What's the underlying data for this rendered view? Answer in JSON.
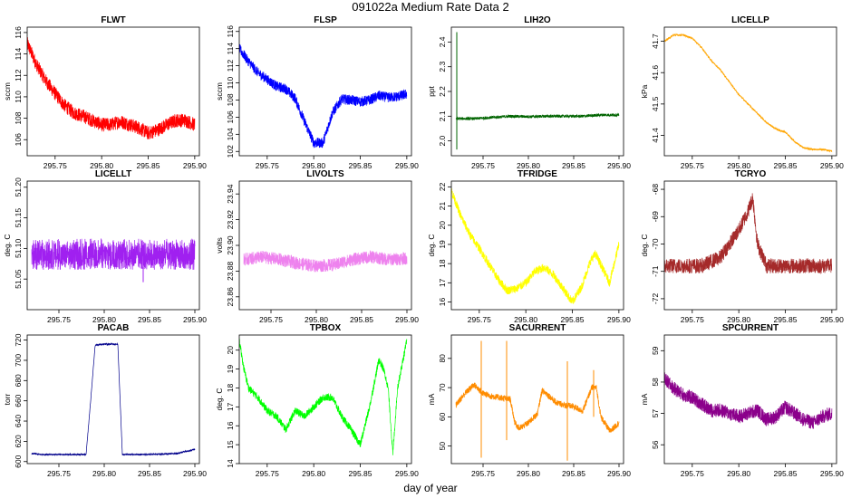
{
  "figure": {
    "title": "091022a   Medium Rate Data 2",
    "xlabel": "day of year"
  },
  "chart_data": [
    {
      "type": "line",
      "title": "FLWT",
      "ylabel": "sccm",
      "color": "#ff0000",
      "xlim": [
        295.72,
        295.905
      ],
      "ylim": [
        104.5,
        116.5
      ],
      "xticks": [
        295.75,
        295.8,
        295.85,
        295.9
      ],
      "xticklabels": [
        "295.75",
        "295.80",
        "295.85",
        "295.90"
      ],
      "yticks": [
        106,
        108,
        110,
        112,
        114,
        116
      ],
      "yticklabels": [
        "106",
        "108",
        "110",
        "112",
        "114",
        "116"
      ],
      "x": [
        295.72,
        295.73,
        295.74,
        295.75,
        295.76,
        295.77,
        295.78,
        295.79,
        295.8,
        295.81,
        295.82,
        295.83,
        295.84,
        295.85,
        295.86,
        295.87,
        295.88,
        295.89,
        295.9
      ],
      "y": [
        115,
        113,
        111.5,
        110.3,
        109.2,
        108.5,
        108.2,
        107.8,
        107.4,
        107.4,
        107.7,
        107.4,
        107.1,
        106.6,
        106.9,
        107.4,
        107.8,
        107.8,
        107.4
      ],
      "noise": 1.3
    },
    {
      "type": "line",
      "title": "FLSP",
      "ylabel": "sccm",
      "color": "#0000ff",
      "xlim": [
        295.72,
        295.905
      ],
      "ylim": [
        101.5,
        116.5
      ],
      "xticks": [
        295.75,
        295.8,
        295.85,
        295.9
      ],
      "xticklabels": [
        "295.75",
        "295.80",
        "295.85",
        "295.90"
      ],
      "yticks": [
        102,
        104,
        106,
        108,
        110,
        112,
        114,
        116
      ],
      "yticklabels": [
        "102",
        "104",
        "106",
        "108",
        "110",
        "112",
        "114",
        "116"
      ],
      "x": [
        295.72,
        295.73,
        295.74,
        295.75,
        295.76,
        295.77,
        295.78,
        295.79,
        295.8,
        295.81,
        295.82,
        295.83,
        295.84,
        295.85,
        295.86,
        295.87,
        295.88,
        295.89,
        295.9
      ],
      "y": [
        114,
        112.5,
        111.2,
        110.4,
        109.6,
        109.3,
        108.2,
        105.5,
        103,
        103,
        106.5,
        108.1,
        108,
        107.8,
        108,
        108.5,
        108.3,
        108.4,
        108.7
      ],
      "noise": 1.2
    },
    {
      "type": "line",
      "title": "LIH2O",
      "ylabel": "ppt",
      "color": "#006400",
      "xlim": [
        295.715,
        295.905
      ],
      "ylim": [
        1.94,
        2.46
      ],
      "xticks": [
        295.75,
        295.8,
        295.85,
        295.9
      ],
      "xticklabels": [
        "295.75",
        "295.80",
        "295.85",
        "295.90"
      ],
      "yticks": [
        2.0,
        2.1,
        2.2,
        2.3,
        2.4
      ],
      "yticklabels": [
        "2.0",
        "2.1",
        "2.2",
        "2.3",
        "2.4"
      ],
      "x": [
        295.72,
        295.74,
        295.76,
        295.78,
        295.8,
        295.82,
        295.84,
        295.86,
        295.88,
        295.9
      ],
      "y": [
        2.09,
        2.09,
        2.095,
        2.1,
        2.098,
        2.1,
        2.1,
        2.1,
        2.105,
        2.105
      ],
      "noise": 0.012,
      "spike": {
        "x": 295.721,
        "ymin": 1.965,
        "ymax": 2.44
      }
    },
    {
      "type": "line",
      "title": "LICELLP",
      "ylabel": "kPa",
      "color": "#ffa500",
      "xlim": [
        295.72,
        295.905
      ],
      "ylim": [
        41.335,
        41.745
      ],
      "xticks": [
        295.75,
        295.8,
        295.85,
        295.9
      ],
      "xticklabels": [
        "295.75",
        "295.80",
        "295.85",
        "295.90"
      ],
      "yticks": [
        41.4,
        41.5,
        41.6,
        41.7
      ],
      "yticklabels": [
        "41.4",
        "41.5",
        "41.6",
        "41.7"
      ],
      "x": [
        295.72,
        295.73,
        295.74,
        295.75,
        295.76,
        295.77,
        295.78,
        295.79,
        295.8,
        295.81,
        295.82,
        295.83,
        295.84,
        295.85,
        295.86,
        295.87,
        295.88,
        295.89,
        295.9
      ],
      "y": [
        41.7,
        41.72,
        41.72,
        41.71,
        41.68,
        41.64,
        41.61,
        41.57,
        41.53,
        41.5,
        41.47,
        41.44,
        41.42,
        41.41,
        41.38,
        41.36,
        41.355,
        41.355,
        41.35
      ],
      "noise": 0.006
    },
    {
      "type": "line",
      "title": "LICELLT",
      "ylabel": "deg. C",
      "color": "#a020f0",
      "xlim": [
        295.715,
        295.905
      ],
      "ylim": [
        51.0,
        51.21
      ],
      "xticks": [
        295.75,
        295.8,
        295.85,
        295.9
      ],
      "xticklabels": [
        "295.75",
        "295.80",
        "295.85",
        "295.90"
      ],
      "yticks": [
        51.05,
        51.1,
        51.15,
        51.2
      ],
      "yticklabels": [
        "51.05",
        "51.10",
        "51.15",
        "51.20"
      ],
      "x": [
        295.72,
        295.9
      ],
      "y": [
        51.075,
        51.075
      ],
      "band": [
        51.065,
        51.11
      ],
      "noise": 0.02,
      "spike": {
        "x": 295.843,
        "ymin": 51.045,
        "ymax": 51.07
      }
    },
    {
      "type": "line",
      "title": "LIVOLTS",
      "ylabel": "volts",
      "color": "#ee82ee",
      "xlim": [
        295.715,
        295.905
      ],
      "ylim": [
        23.85,
        23.95
      ],
      "xticks": [
        295.75,
        295.8,
        295.85,
        295.9
      ],
      "xticklabels": [
        "295.75",
        "295.80",
        "295.85",
        "295.90"
      ],
      "yticks": [
        23.86,
        23.88,
        23.9,
        23.92,
        23.94
      ],
      "yticklabels": [
        "23.86",
        "23.88",
        "23.90",
        "23.92",
        "23.94"
      ],
      "x": [
        295.72,
        295.74,
        295.76,
        295.78,
        295.8,
        295.82,
        295.84,
        295.86,
        295.88,
        295.9
      ],
      "y": [
        23.889,
        23.891,
        23.889,
        23.886,
        23.884,
        23.885,
        23.889,
        23.891,
        23.889,
        23.89
      ],
      "noise": 0.01
    },
    {
      "type": "line",
      "title": "TFRIDGE",
      "ylabel": "deg. C",
      "color": "#ffff00",
      "xlim": [
        295.72,
        295.905
      ],
      "ylim": [
        15.6,
        22.3
      ],
      "xticks": [
        295.75,
        295.8,
        295.85,
        295.9
      ],
      "xticklabels": [
        "295.75",
        "295.80",
        "295.85",
        "295.90"
      ],
      "yticks": [
        16,
        17,
        18,
        19,
        20,
        21,
        22
      ],
      "yticklabels": [
        "16",
        "17",
        "18",
        "19",
        "20",
        "21",
        "22"
      ],
      "x": [
        295.72,
        295.73,
        295.74,
        295.75,
        295.76,
        295.77,
        295.78,
        295.79,
        295.8,
        295.81,
        295.82,
        295.83,
        295.84,
        295.85,
        295.86,
        295.87,
        295.875,
        295.88,
        295.89,
        295.9
      ],
      "y": [
        21.8,
        20.5,
        19.5,
        18.8,
        18,
        17.2,
        16.6,
        16.7,
        17,
        17.6,
        17.8,
        17.4,
        16.7,
        16,
        16.8,
        18.2,
        18.5,
        18,
        17,
        19
      ],
      "noise": 0.45
    },
    {
      "type": "line",
      "title": "TCRYO",
      "ylabel": "deg. C",
      "color": "#a52a2a",
      "xlim": [
        295.72,
        295.905
      ],
      "ylim": [
        -72.4,
        -67.7
      ],
      "xticks": [
        295.75,
        295.8,
        295.85,
        295.9
      ],
      "xticklabels": [
        "295.75",
        "295.80",
        "295.85",
        "295.90"
      ],
      "yticks": [
        -72,
        -71,
        -70,
        -69,
        -68
      ],
      "yticklabels": [
        "-72",
        "-71",
        "-70",
        "-69",
        "-68"
      ],
      "x": [
        295.72,
        295.74,
        295.76,
        295.78,
        295.79,
        295.8,
        295.81,
        295.815,
        295.82,
        295.83,
        295.85,
        295.87,
        295.9
      ],
      "y": [
        -70.8,
        -70.8,
        -70.8,
        -70.5,
        -70,
        -69.5,
        -68.8,
        -68.3,
        -70,
        -70.8,
        -70.8,
        -70.8,
        -70.8
      ],
      "noise": 0.55
    },
    {
      "type": "line",
      "title": "PACAB",
      "ylabel": "torr",
      "color": "#00008b",
      "xlim": [
        295.715,
        295.905
      ],
      "ylim": [
        598,
        725
      ],
      "xticks": [
        295.75,
        295.8,
        295.85,
        295.9
      ],
      "xticklabels": [
        "295.75",
        "295.80",
        "295.85",
        "295.90"
      ],
      "yticks": [
        600,
        620,
        640,
        660,
        680,
        700,
        720
      ],
      "yticklabels": [
        "600",
        "620",
        "640",
        "660",
        "680",
        "700",
        "720"
      ],
      "x": [
        295.72,
        295.73,
        295.76,
        295.78,
        295.785,
        295.79,
        295.8,
        295.81,
        295.815,
        295.82,
        295.85,
        295.88,
        295.9
      ],
      "y": [
        608,
        607,
        607,
        607,
        660,
        715,
        716,
        716,
        716,
        607,
        607,
        608,
        612
      ],
      "noise": 1.5
    },
    {
      "type": "line",
      "title": "TPBOX",
      "ylabel": "deg. C",
      "color": "#00ff00",
      "xlim": [
        295.72,
        295.905
      ],
      "ylim": [
        14,
        20.8
      ],
      "xticks": [
        295.75,
        295.8,
        295.85,
        295.9
      ],
      "xticklabels": [
        "295.75",
        "295.80",
        "295.85",
        "295.90"
      ],
      "yticks": [
        14,
        15,
        16,
        17,
        18,
        19,
        20
      ],
      "yticklabels": [
        "14",
        "15",
        "16",
        "17",
        "18",
        "19",
        "20"
      ],
      "x": [
        295.72,
        295.725,
        295.73,
        295.74,
        295.75,
        295.76,
        295.77,
        295.78,
        295.79,
        295.8,
        295.81,
        295.82,
        295.83,
        295.84,
        295.85,
        295.86,
        295.87,
        295.875,
        295.88,
        295.885,
        295.89,
        295.9
      ],
      "y": [
        20.5,
        19,
        18,
        17.5,
        16.8,
        16.5,
        15.8,
        16.8,
        16.5,
        17,
        17.5,
        17.5,
        16.5,
        15.8,
        15,
        17,
        19.5,
        19,
        18,
        14.5,
        18,
        20.5
      ],
      "noise": 0.4
    },
    {
      "type": "line",
      "title": "SACURRENT",
      "ylabel": "mA",
      "color": "#ff8c00",
      "xlim": [
        295.715,
        295.905
      ],
      "ylim": [
        44,
        88
      ],
      "xticks": [
        295.75,
        295.8,
        295.85,
        295.9
      ],
      "xticklabels": [
        "295.75",
        "295.80",
        "295.85",
        "295.90"
      ],
      "yticks": [
        50,
        60,
        70,
        80
      ],
      "yticklabels": [
        "50",
        "60",
        "70",
        "80"
      ],
      "x": [
        295.72,
        295.73,
        295.74,
        295.75,
        295.76,
        295.77,
        295.78,
        295.785,
        295.79,
        295.8,
        295.81,
        295.815,
        295.82,
        295.83,
        295.84,
        295.85,
        295.86,
        295.87,
        295.875,
        295.88,
        295.89,
        295.9
      ],
      "y": [
        64,
        68,
        71,
        68,
        67,
        66.5,
        66,
        58,
        56,
        58,
        61,
        69,
        68,
        65,
        64,
        63.5,
        62,
        70,
        70,
        60,
        55,
        58
      ],
      "noise": 2.2,
      "spikes": [
        {
          "x": 295.748,
          "ymin": 46,
          "ymax": 86
        },
        {
          "x": 295.776,
          "ymin": 52,
          "ymax": 86
        },
        {
          "x": 295.843,
          "ymin": 45,
          "ymax": 79
        },
        {
          "x": 295.872,
          "ymin": 60,
          "ymax": 76
        }
      ]
    },
    {
      "type": "line",
      "title": "SPCURRENT",
      "ylabel": "mA",
      "color": "#8b008b",
      "xlim": [
        295.72,
        295.905
      ],
      "ylim": [
        55.4,
        59.5
      ],
      "xticks": [
        295.75,
        295.8,
        295.85,
        295.9
      ],
      "xticklabels": [
        "295.75",
        "295.80",
        "295.85",
        "295.90"
      ],
      "yticks": [
        56,
        57,
        58,
        59
      ],
      "yticklabels": [
        "56",
        "57",
        "58",
        "59"
      ],
      "x": [
        295.72,
        295.73,
        295.74,
        295.75,
        295.76,
        295.77,
        295.78,
        295.79,
        295.8,
        295.81,
        295.82,
        295.83,
        295.84,
        295.85,
        295.86,
        295.87,
        295.88,
        295.89,
        295.9
      ],
      "y": [
        58.1,
        57.8,
        57.6,
        57.5,
        57.3,
        57.1,
        57.1,
        57,
        56.9,
        57,
        57.1,
        56.8,
        56.9,
        57.2,
        57,
        56.8,
        56.7,
        56.9,
        57
      ],
      "noise": 0.45
    }
  ]
}
